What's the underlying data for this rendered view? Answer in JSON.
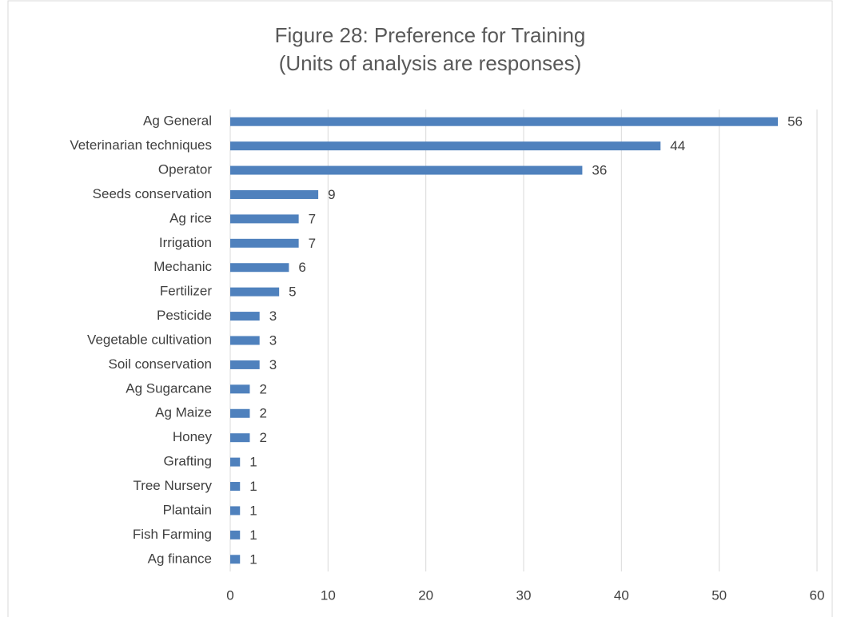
{
  "chart_data": {
    "type": "hbar",
    "title": "Figure 28:  Preference for Training",
    "subtitle": "(Units of analysis are responses)",
    "categories": [
      "Ag General",
      "Veterinarian techniques",
      "Operator",
      "Seeds conservation",
      "Ag rice",
      "Irrigation",
      "Mechanic",
      "Fertilizer",
      "Pesticide",
      "Vegetable cultivation",
      "Soil conservation",
      "Ag Sugarcane",
      "Ag Maize",
      "Honey",
      "Grafting",
      "Tree Nursery",
      "Plantain",
      "Fish Farming",
      "Ag finance"
    ],
    "values": [
      56,
      44,
      36,
      9,
      7,
      7,
      6,
      5,
      3,
      3,
      3,
      2,
      2,
      2,
      1,
      1,
      1,
      1,
      1
    ],
    "color": "#4f81bd",
    "xlim": [
      0,
      60
    ],
    "xticks": [
      0,
      10,
      20,
      30,
      40,
      50,
      60
    ],
    "grid": true
  }
}
